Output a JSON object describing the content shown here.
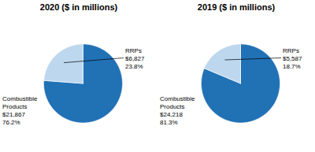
{
  "chart_data": [
    {
      "type": "pie",
      "title": "2020 ($ in millions)",
      "categories": [
        "Combustible\nProducts",
        "RRPs"
      ],
      "values": [
        76.2,
        23.8
      ],
      "value_labels": [
        "76.2%",
        "23.8%"
      ],
      "annotations": [
        "$21,867",
        "$6,827"
      ],
      "colors": [
        "#2171b5",
        "#bdd7ee"
      ],
      "data_labels": true
    },
    {
      "type": "pie",
      "title": "2019 ($ in millions)",
      "categories": [
        "Combustible\nProducts",
        "RRPs"
      ],
      "values": [
        81.3,
        18.7
      ],
      "value_labels": [
        "81.3%",
        "18.7%"
      ],
      "annotations": [
        "$24,218",
        "$5,587"
      ],
      "colors": [
        "#2171b5",
        "#bdd7ee"
      ],
      "data_labels": true
    }
  ]
}
